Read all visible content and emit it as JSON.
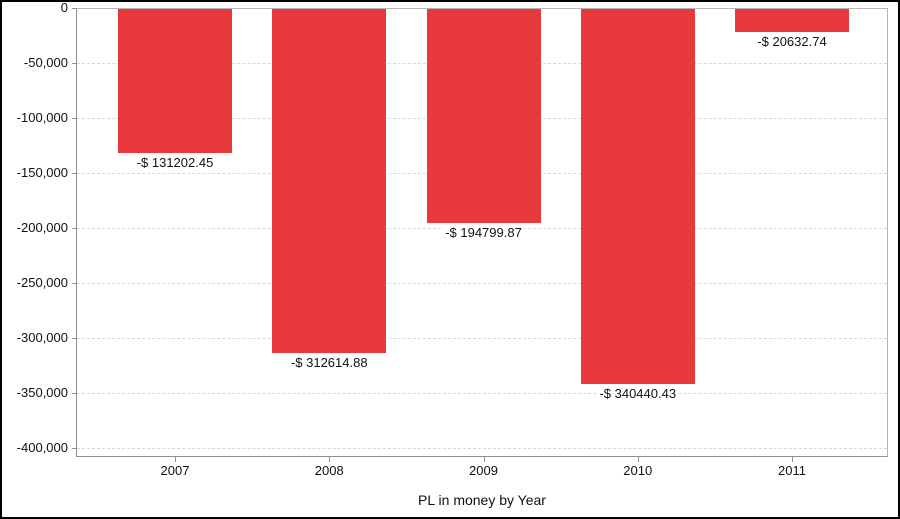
{
  "window": {
    "background": "#ffffff",
    "frame_border_color": "#000000"
  },
  "chart_data": {
    "type": "bar",
    "title": "",
    "xlabel": "PL in money by Year",
    "ylabel": "",
    "categories": [
      "2007",
      "2008",
      "2009",
      "2010",
      "2011"
    ],
    "values": [
      -131202.45,
      -312614.88,
      -194799.87,
      -340440.43,
      -20632.74
    ],
    "bar_labels": [
      "-$ 131202.45",
      "-$ 312614.88",
      "-$ 194799.87",
      "-$ 340440.43",
      "-$ 20632.74"
    ],
    "ylim": [
      -400000,
      0
    ],
    "ytick_interval": 50000,
    "ytick_labels": [
      "0",
      "-50,000",
      "-100,000",
      "-150,000",
      "-200,000",
      "-250,000",
      "-300,000",
      "-350,000",
      "-400,000"
    ],
    "grid": "horizontal-dashed",
    "legend": "none",
    "bar_color": "#e8393d",
    "grid_color": "#d9d9d9",
    "axis_color": "#8f8f8f",
    "text_color": "#111111"
  }
}
